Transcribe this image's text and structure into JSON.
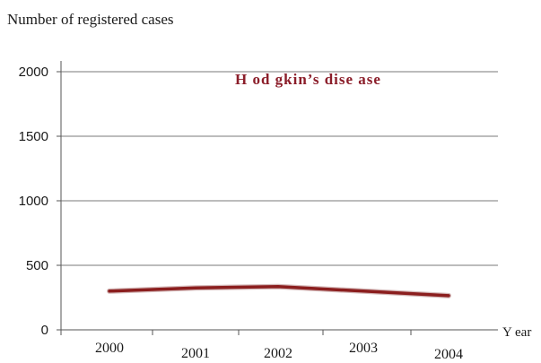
{
  "chart_data": {
    "type": "line",
    "title": "",
    "ylabel": "Number of registered cases",
    "xlabel": "Y ear",
    "annotation": "H od gkin’s dise ase",
    "categories": [
      "2000",
      "2001",
      "2002",
      "2003",
      "2004"
    ],
    "series": [
      {
        "values": [
          300,
          325,
          335,
          300,
          265
        ]
      }
    ],
    "ylim": [
      0,
      2000
    ],
    "yticks": [
      0,
      500,
      1000,
      1500,
      2000
    ],
    "grid": true,
    "colors": {
      "line": "#8b1e1e",
      "line_shadow": "#b08080",
      "annotation": "#8b1e2a",
      "grid": "#7a7a7a",
      "axis": "#555555"
    }
  }
}
